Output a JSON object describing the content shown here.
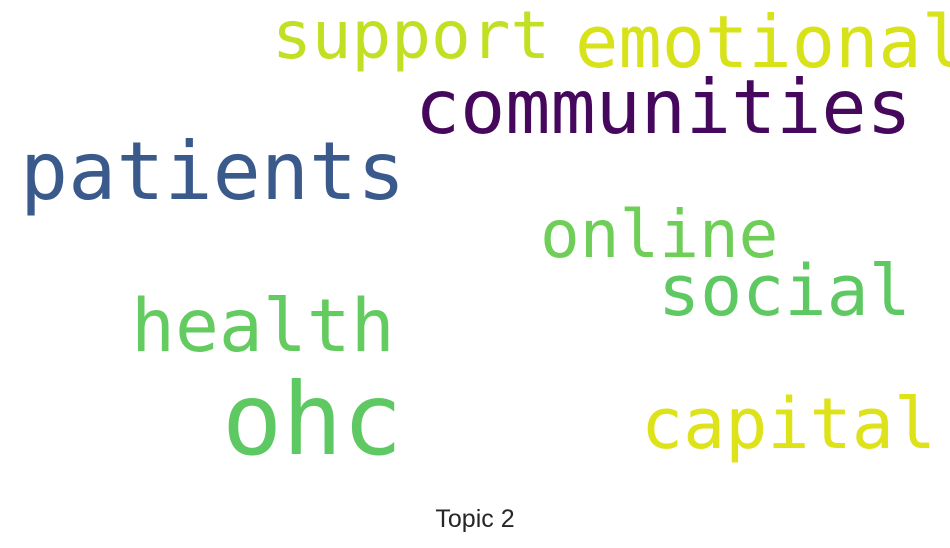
{
  "title": "Topic 2",
  "words": [
    {
      "id": "support",
      "text": "support",
      "color": "#c2df23"
    },
    {
      "id": "emotional",
      "text": "emotional",
      "color": "#d8e219"
    },
    {
      "id": "communities",
      "text": "communities",
      "color": "#46085c"
    },
    {
      "id": "patients",
      "text": "patients",
      "color": "#3b5a8c"
    },
    {
      "id": "online",
      "text": "online",
      "color": "#6ece58"
    },
    {
      "id": "social",
      "text": "social",
      "color": "#5ec962"
    },
    {
      "id": "health",
      "text": "health",
      "color": "#63cb5f"
    },
    {
      "id": "ohc",
      "text": "ohc",
      "color": "#5ec962"
    },
    {
      "id": "capital",
      "text": "capital",
      "color": "#dde318"
    }
  ]
}
